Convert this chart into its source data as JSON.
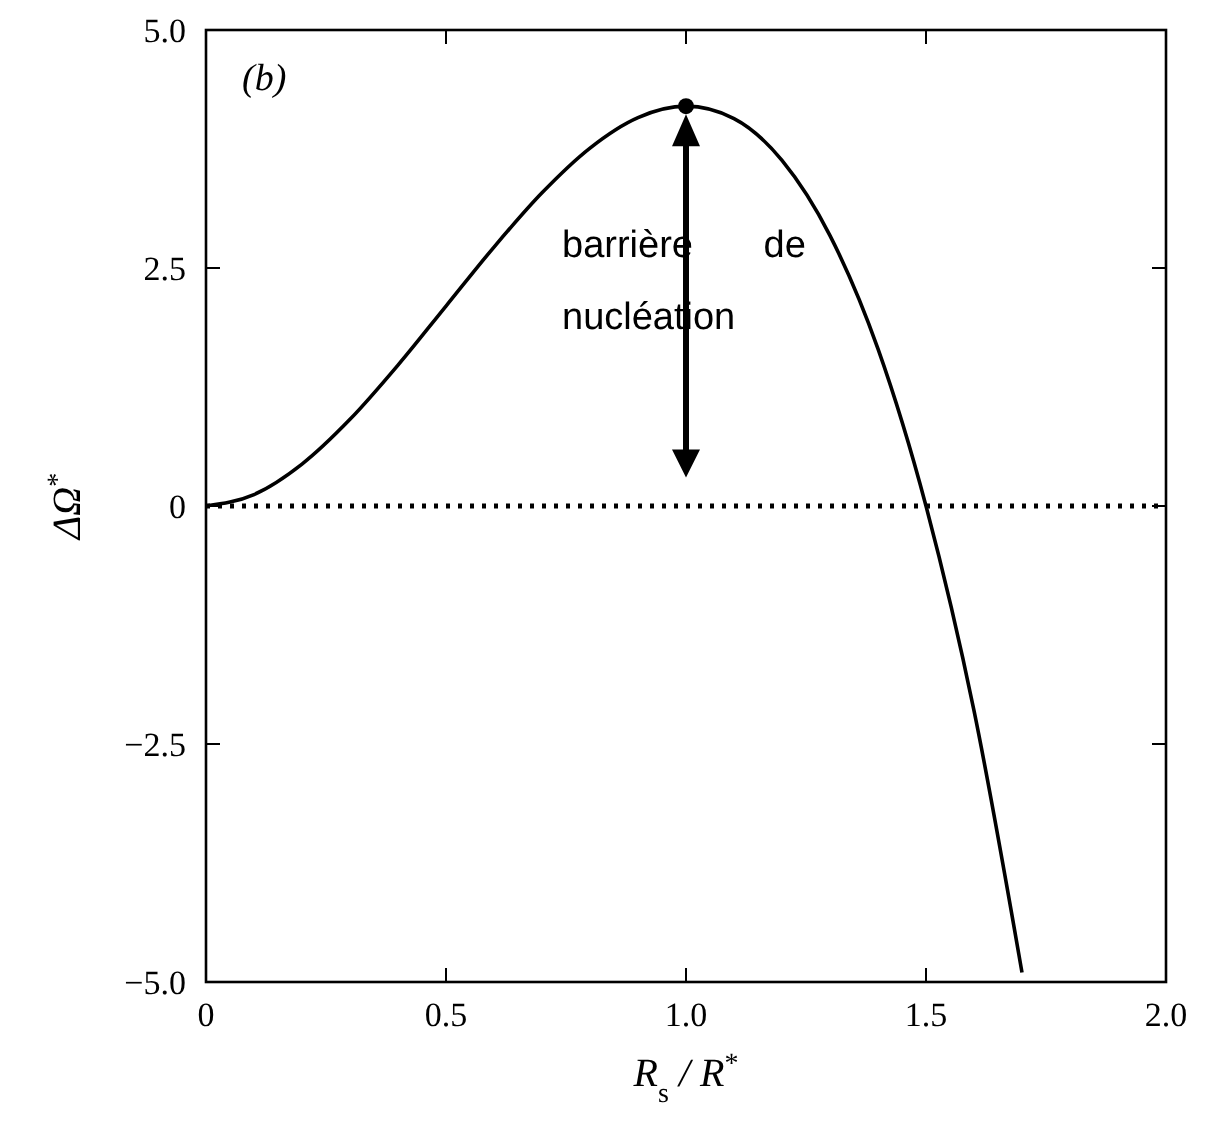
{
  "chart_data": {
    "type": "line",
    "xlabel": "R$_{s}$ / R$^{*}$",
    "ylabel": "ΔΩ$^{*}$",
    "xlim": [
      0,
      2
    ],
    "ylim": [
      -5,
      5
    ],
    "xticks": [
      0,
      0.5,
      {
        "value": 1,
        "label": "1.0"
      },
      1.5,
      {
        "value": 2,
        "label": "2.0"
      }
    ],
    "yticks": [
      {
        "value": -5,
        "label": "−5.0"
      },
      {
        "value": -2.5,
        "label": "−2.5"
      },
      0,
      2.5,
      {
        "value": 5,
        "label": "5.0"
      }
    ],
    "series": [
      {
        "color": "#000000",
        "marker": "none",
        "line_style": "solid",
        "x": [
          0,
          0.1,
          0.2,
          0.3,
          0.4,
          0.5,
          0.6,
          0.7,
          0.8,
          0.9,
          1.0,
          1.1,
          1.2,
          1.3,
          1.4,
          1.5,
          1.6,
          1.7
        ],
        "values": [
          0,
          0.12,
          0.44,
          0.91,
          1.48,
          2.1,
          2.72,
          3.29,
          3.76,
          4.08,
          4.2,
          4.07,
          3.63,
          2.84,
          1.65,
          0,
          -2.15,
          -4.9
        ]
      },
      {
        "type": "scatter",
        "color": "#000000",
        "marker": "circle",
        "x": [
          1.0
        ],
        "values": [
          4.2
        ]
      }
    ],
    "ref_lines": [
      {
        "axis": "y",
        "value": 0,
        "line_style": "dotted",
        "color": "#000000"
      }
    ],
    "annotations": [
      "(b)",
      "barrière de nucléation"
    ]
  }
}
